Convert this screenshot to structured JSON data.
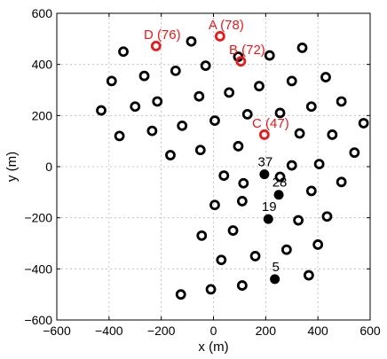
{
  "chart_data": {
    "type": "scatter",
    "title": "",
    "xlabel": "x (m)",
    "ylabel": "y (m)",
    "xlim": [
      -600,
      600
    ],
    "ylim": [
      -600,
      600
    ],
    "xticks": [
      -600,
      -400,
      -200,
      0,
      200,
      400,
      600
    ],
    "yticks": [
      -600,
      -400,
      -200,
      0,
      200,
      400,
      600
    ],
    "grid": true,
    "colors": {
      "open": "#000000",
      "highlight": "#e8191a",
      "filled": "#000000"
    },
    "series": [
      {
        "marker": "open-circle",
        "color": "#000000",
        "points": [
          [
            -85,
            490
          ],
          [
            -345,
            450
          ],
          [
            -390,
            335
          ],
          [
            -265,
            355
          ],
          [
            -145,
            375
          ],
          [
            -30,
            395
          ],
          [
            -430,
            220
          ],
          [
            -215,
            255
          ],
          [
            -55,
            275
          ],
          [
            60,
            290
          ],
          [
            175,
            315
          ],
          [
            95,
            430
          ],
          [
            215,
            435
          ],
          [
            340,
            465
          ],
          [
            430,
            350
          ],
          [
            300,
            335
          ],
          [
            -300,
            235
          ],
          [
            -360,
            120
          ],
          [
            -235,
            140
          ],
          [
            -120,
            160
          ],
          [
            -165,
            45
          ],
          [
            -50,
            65
          ],
          [
            5,
            180
          ],
          [
            130,
            205
          ],
          [
            255,
            210
          ],
          [
            375,
            235
          ],
          [
            490,
            255
          ],
          [
            575,
            170
          ],
          [
            330,
            130
          ],
          [
            455,
            125
          ],
          [
            540,
            55
          ],
          [
            405,
            10
          ],
          [
            300,
            5
          ],
          [
            95,
            80
          ],
          [
            40,
            -35
          ],
          [
            115,
            -65
          ],
          [
            255,
            -40
          ],
          [
            375,
            -95
          ],
          [
            490,
            -60
          ],
          [
            5,
            -150
          ],
          [
            110,
            -135
          ],
          [
            325,
            -210
          ],
          [
            435,
            -195
          ],
          [
            -45,
            -270
          ],
          [
            75,
            -250
          ],
          [
            280,
            -325
          ],
          [
            400,
            -305
          ],
          [
            160,
            -350
          ],
          [
            30,
            -365
          ],
          [
            365,
            -425
          ],
          [
            110,
            -465
          ],
          [
            -10,
            -480
          ],
          [
            -125,
            -500
          ]
        ]
      },
      {
        "marker": "open-circle-red",
        "color": "#e8191a",
        "points": [
          {
            "x": -220,
            "y": 472,
            "label": "D (76)"
          },
          {
            "x": 25,
            "y": 510,
            "label": "A (78)"
          },
          {
            "x": 105,
            "y": 412,
            "label": "B (72)"
          },
          {
            "x": 195,
            "y": 125,
            "label": "C (47)"
          }
        ]
      },
      {
        "marker": "filled-circle",
        "color": "#000000",
        "points": [
          {
            "x": 195,
            "y": -30,
            "label": "37"
          },
          {
            "x": 250,
            "y": -110,
            "label": "28"
          },
          {
            "x": 210,
            "y": -205,
            "label": "19"
          },
          {
            "x": 235,
            "y": -440,
            "label": "5"
          }
        ]
      }
    ]
  }
}
